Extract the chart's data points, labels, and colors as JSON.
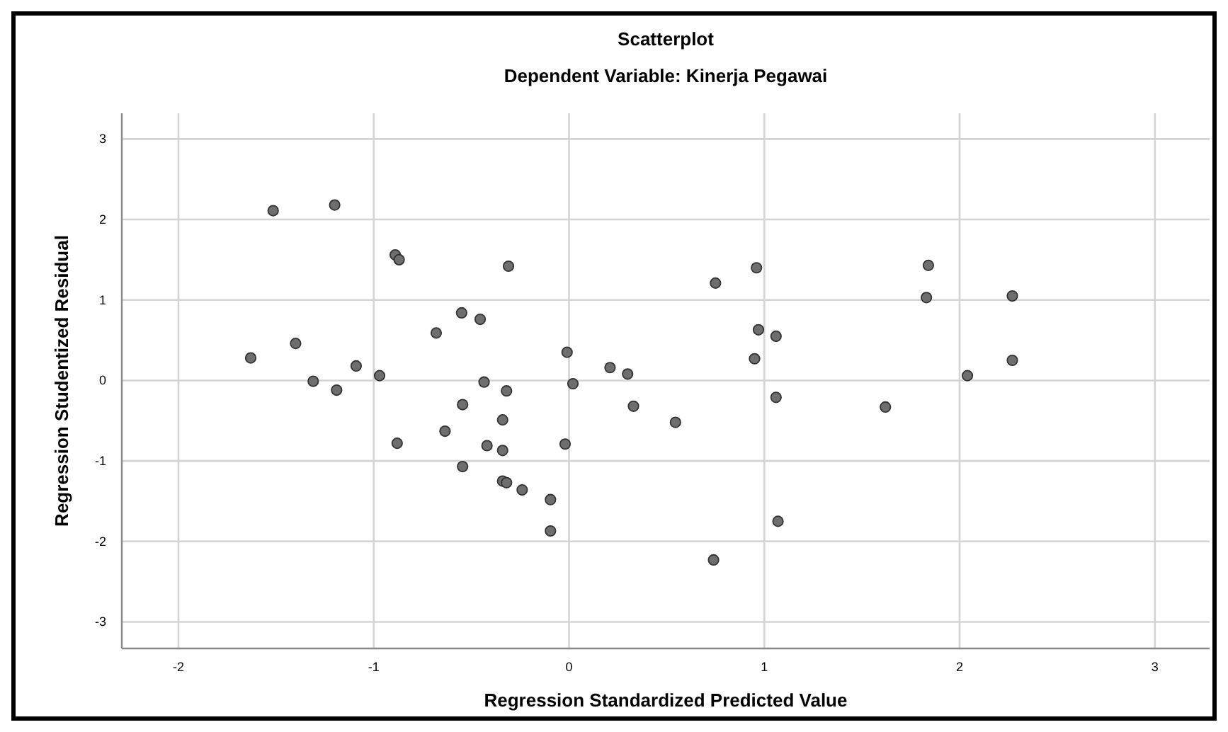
{
  "chart_data": {
    "type": "scatter",
    "title": "Scatterplot",
    "subtitle": "Dependent Variable: Kinerja Pegawai",
    "xlabel": "Regression Standardized Predicted Value",
    "ylabel": "Regression Studentized Residual",
    "xlim": [
      -2.29,
      3.28
    ],
    "ylim": [
      -3.33,
      3.32
    ],
    "xticks": [
      -2,
      -1,
      0,
      1,
      2,
      3
    ],
    "yticks": [
      -3,
      -2,
      -1,
      0,
      1,
      2,
      3
    ],
    "grid": true,
    "marker": "circle",
    "series": [
      {
        "color": "#6e6e6e",
        "x": [
          -1.515,
          -1.2,
          -0.89,
          -0.87,
          -0.31,
          -0.68,
          -0.55,
          -0.455,
          -0.01,
          -1.4,
          -1.63,
          -1.31,
          -1.19,
          -1.09,
          -0.97,
          -0.88,
          -0.635,
          -0.545,
          -0.545,
          -0.435,
          -0.42,
          -0.32,
          -0.34,
          -0.34,
          -0.34,
          -0.32,
          -0.24,
          -0.095,
          -0.095,
          -0.02,
          0.02,
          0.21,
          0.3,
          0.33,
          0.75,
          0.96,
          0.97,
          1.06,
          0.95,
          1.84,
          1.83,
          2.27,
          2.27,
          2.04,
          1.06,
          1.62,
          0.545,
          1.07,
          0.74
        ],
        "values": [
          2.11,
          2.18,
          1.56,
          1.5,
          1.42,
          0.59,
          0.84,
          0.76,
          0.35,
          0.46,
          0.28,
          -0.01,
          -0.12,
          0.18,
          0.06,
          -0.78,
          -0.63,
          -0.3,
          -1.07,
          -0.02,
          -0.81,
          -0.13,
          -0.49,
          -0.87,
          -1.25,
          -1.27,
          -1.36,
          -1.48,
          -1.87,
          -0.79,
          -0.04,
          0.16,
          0.08,
          -0.32,
          1.21,
          1.4,
          0.63,
          0.55,
          0.27,
          1.43,
          1.03,
          1.05,
          0.25,
          0.06,
          -0.21,
          -0.33,
          -0.52,
          -1.75,
          -2.23
        ]
      }
    ]
  }
}
